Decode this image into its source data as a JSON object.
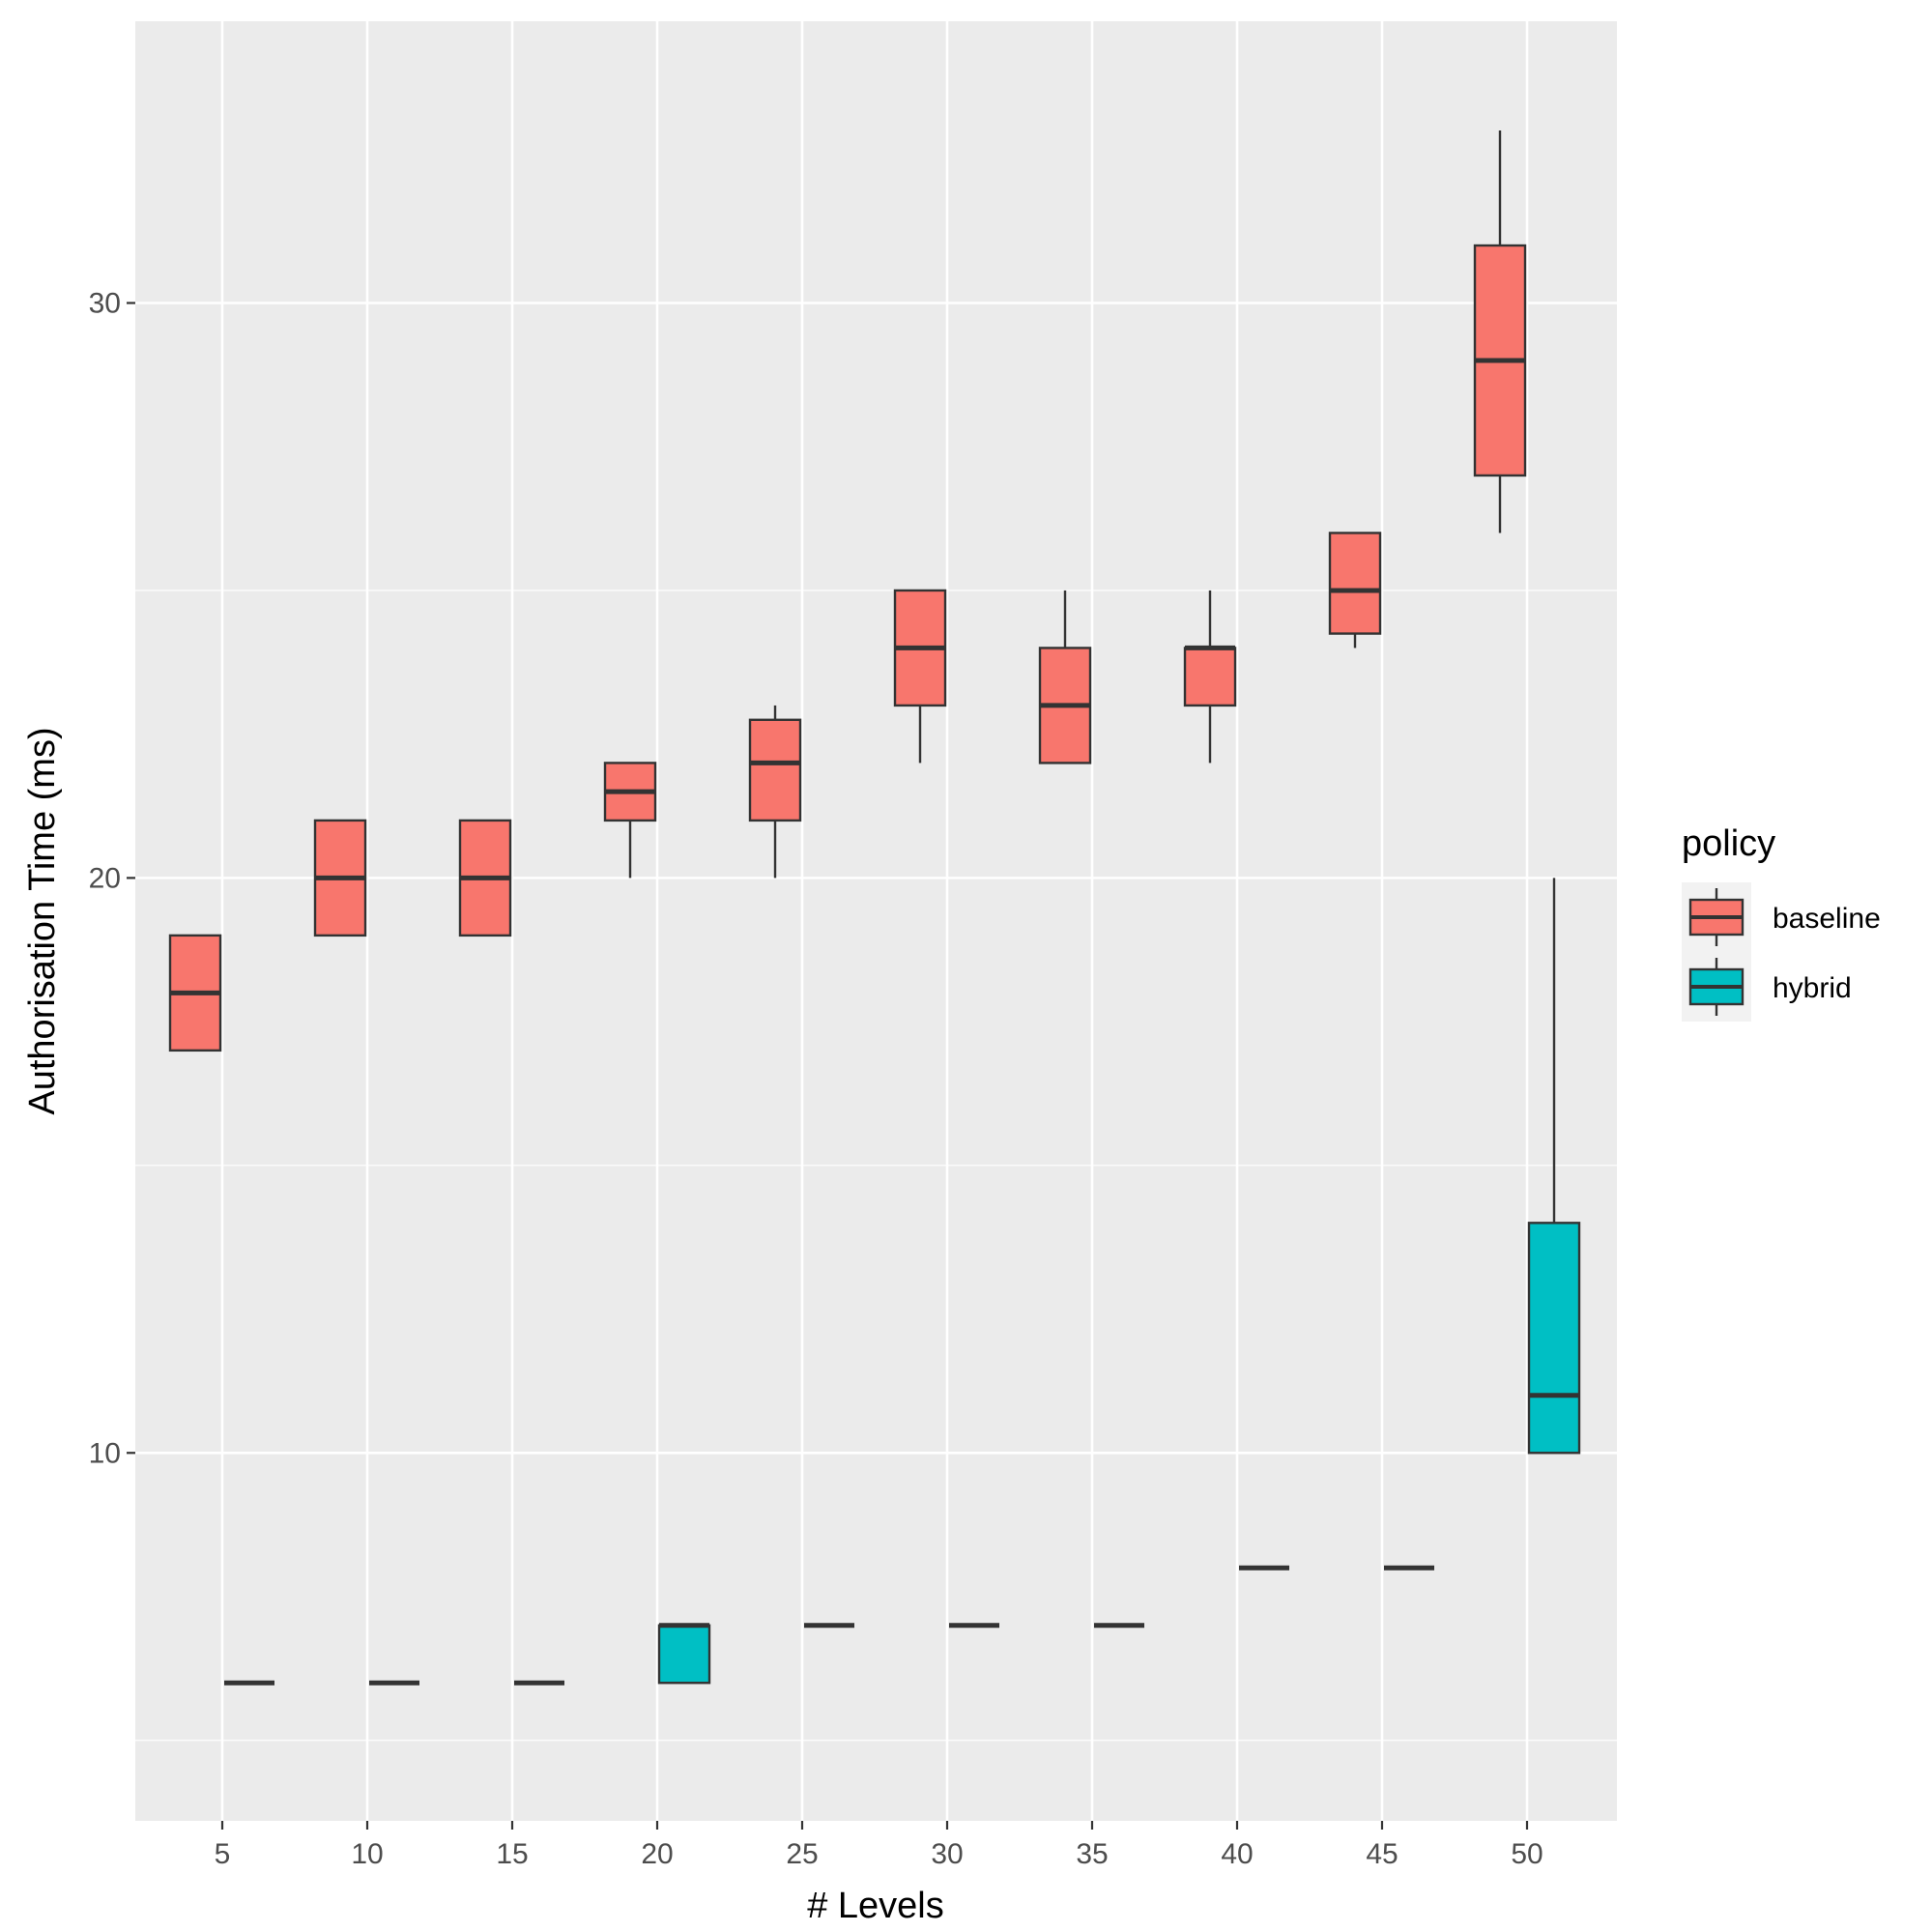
{
  "chart_data": {
    "type": "boxplot",
    "xlabel": "# Levels",
    "ylabel": "Authorisation Time (ms)",
    "categories": [
      "5",
      "10",
      "15",
      "20",
      "25",
      "30",
      "35",
      "40",
      "45",
      "50"
    ],
    "y_ticks": [
      10,
      20,
      30
    ],
    "y_tick_labels": [
      "10",
      "20",
      "30"
    ],
    "ylim": [
      3.6,
      34.9
    ],
    "grid": true,
    "legend": {
      "title": "policy",
      "position": "right",
      "entries": [
        {
          "name": "baseline",
          "color": "#F8766D"
        },
        {
          "name": "hybrid",
          "color": "#00BFC4"
        }
      ]
    },
    "series": [
      {
        "name": "baseline",
        "color": "#F8766D",
        "boxes": [
          {
            "category": "5",
            "lower_whisker": 17,
            "q1": 17,
            "median": 18,
            "q3": 19,
            "upper_whisker": 19
          },
          {
            "category": "10",
            "lower_whisker": 19,
            "q1": 19,
            "median": 20,
            "q3": 21,
            "upper_whisker": 21
          },
          {
            "category": "15",
            "lower_whisker": 19,
            "q1": 19,
            "median": 20,
            "q3": 21,
            "upper_whisker": 21
          },
          {
            "category": "20",
            "lower_whisker": 20,
            "q1": 21,
            "median": 21.5,
            "q3": 22,
            "upper_whisker": 22
          },
          {
            "category": "25",
            "lower_whisker": 20,
            "q1": 21,
            "median": 22,
            "q3": 22.75,
            "upper_whisker": 23
          },
          {
            "category": "30",
            "lower_whisker": 22,
            "q1": 23,
            "median": 24,
            "q3": 25,
            "upper_whisker": 25
          },
          {
            "category": "35",
            "lower_whisker": 22,
            "q1": 22,
            "median": 23,
            "q3": 24,
            "upper_whisker": 25
          },
          {
            "category": "40",
            "lower_whisker": 22,
            "q1": 23,
            "median": 24,
            "q3": 24,
            "upper_whisker": 25
          },
          {
            "category": "45",
            "lower_whisker": 24,
            "q1": 24.25,
            "median": 25,
            "q3": 26,
            "upper_whisker": 26
          },
          {
            "category": "50",
            "lower_whisker": 26,
            "q1": 27,
            "median": 29,
            "q3": 31,
            "upper_whisker": 33
          }
        ]
      },
      {
        "name": "hybrid",
        "color": "#00BFC4",
        "boxes": [
          {
            "category": "5",
            "lower_whisker": 6,
            "q1": 6,
            "median": 6,
            "q3": 6,
            "upper_whisker": 6
          },
          {
            "category": "10",
            "lower_whisker": 6,
            "q1": 6,
            "median": 6,
            "q3": 6,
            "upper_whisker": 6
          },
          {
            "category": "15",
            "lower_whisker": 6,
            "q1": 6,
            "median": 6,
            "q3": 6,
            "upper_whisker": 6
          },
          {
            "category": "20",
            "lower_whisker": 6,
            "q1": 6,
            "median": 7,
            "q3": 7,
            "upper_whisker": 7
          },
          {
            "category": "25",
            "lower_whisker": 7,
            "q1": 7,
            "median": 7,
            "q3": 7,
            "upper_whisker": 7
          },
          {
            "category": "30",
            "lower_whisker": 7,
            "q1": 7,
            "median": 7,
            "q3": 7,
            "upper_whisker": 7
          },
          {
            "category": "35",
            "lower_whisker": 7,
            "q1": 7,
            "median": 7,
            "q3": 7,
            "upper_whisker": 7
          },
          {
            "category": "40",
            "lower_whisker": 8,
            "q1": 8,
            "median": 8,
            "q3": 8,
            "upper_whisker": 8
          },
          {
            "category": "45",
            "lower_whisker": 8,
            "q1": 8,
            "median": 8,
            "q3": 8,
            "upper_whisker": 8
          },
          {
            "category": "50",
            "lower_whisker": 10,
            "q1": 10,
            "median": 11,
            "q3": 14,
            "upper_whisker": 20
          }
        ]
      }
    ]
  }
}
